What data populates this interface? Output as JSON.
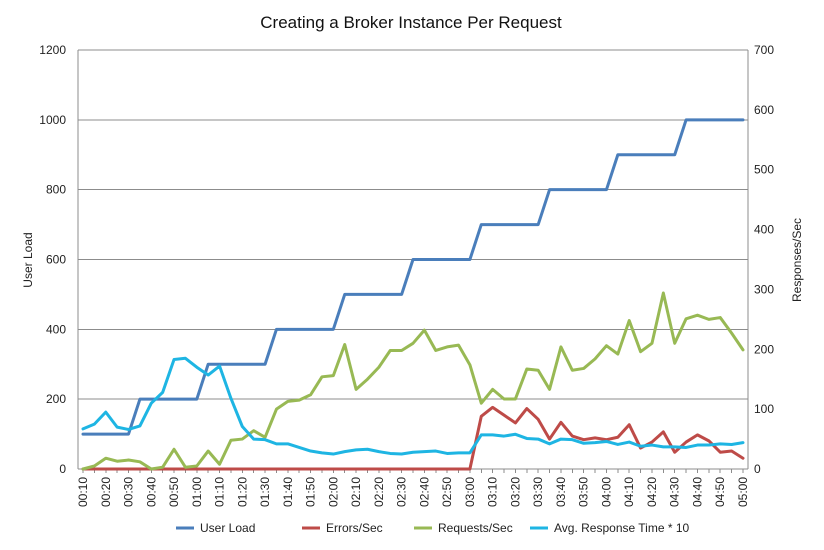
{
  "chart_data": {
    "type": "line",
    "title": "Creating a Broker Instance Per Request",
    "ylabel_left": "User Load",
    "ylabel_right": "Responses/Sec",
    "ylim_left": [
      0,
      1200
    ],
    "ylim_right": [
      0,
      700
    ],
    "yticks_left": [
      0,
      200,
      400,
      600,
      800,
      1000,
      1200
    ],
    "yticks_right": [
      0,
      100,
      200,
      300,
      400,
      500,
      600,
      700
    ],
    "grid": "horizontal",
    "legend_position": "bottom",
    "categories": [
      "00:10",
      "00:15",
      "00:20",
      "00:25",
      "00:30",
      "00:35",
      "00:40",
      "00:45",
      "00:50",
      "00:55",
      "01:00",
      "01:05",
      "01:10",
      "01:15",
      "01:20",
      "01:25",
      "01:30",
      "01:35",
      "01:40",
      "01:45",
      "01:50",
      "01:55",
      "02:00",
      "02:05",
      "02:10",
      "02:15",
      "02:20",
      "02:25",
      "02:30",
      "02:35",
      "02:40",
      "02:45",
      "02:50",
      "02:55",
      "03:00",
      "03:05",
      "03:10",
      "03:15",
      "03:20",
      "03:25",
      "03:30",
      "03:35",
      "03:40",
      "03:45",
      "03:50",
      "03:55",
      "04:00",
      "04:05",
      "04:10",
      "04:15",
      "04:20",
      "04:25",
      "04:30",
      "04:35",
      "04:40",
      "04:45",
      "04:50",
      "04:55",
      "05:00"
    ],
    "tick_labels": [
      "00:10",
      "00:20",
      "00:30",
      "00:40",
      "00:50",
      "01:00",
      "01:10",
      "01:20",
      "01:30",
      "01:40",
      "01:50",
      "02:00",
      "02:10",
      "02:20",
      "02:30",
      "02:40",
      "02:50",
      "03:00",
      "03:10",
      "03:20",
      "03:30",
      "03:40",
      "03:50",
      "04:00",
      "04:10",
      "04:20",
      "04:30",
      "04:40",
      "04:50",
      "05:00"
    ],
    "series": [
      {
        "name": "User Load",
        "axis": "left",
        "color": "#4a7ebb",
        "values": [
          100,
          100,
          100,
          100,
          100,
          200,
          200,
          200,
          200,
          200,
          200,
          300,
          300,
          300,
          300,
          300,
          300,
          400,
          400,
          400,
          400,
          400,
          400,
          500,
          500,
          500,
          500,
          500,
          500,
          600,
          600,
          600,
          600,
          600,
          600,
          700,
          700,
          700,
          700,
          700,
          700,
          800,
          800,
          800,
          800,
          800,
          800,
          900,
          900,
          900,
          900,
          900,
          900,
          1000,
          1000,
          1000,
          1000,
          1000,
          1000
        ]
      },
      {
        "name": "Errors/Sec",
        "axis": "right",
        "color": "#be4b48",
        "values": [
          0,
          0,
          0,
          0,
          0,
          0,
          0,
          0,
          0,
          0,
          0,
          0,
          0,
          0,
          0,
          0,
          0,
          0,
          0,
          0,
          0,
          0,
          0,
          0,
          0,
          0,
          0,
          0,
          0,
          0,
          0,
          0,
          0,
          0,
          0,
          88,
          103,
          90,
          77,
          101,
          83,
          50,
          78,
          55,
          49,
          52,
          49,
          53,
          74,
          35,
          45,
          62,
          28,
          45,
          57,
          47,
          28,
          30,
          18
        ]
      },
      {
        "name": "Requests/Sec",
        "axis": "right",
        "color": "#98b954",
        "values": [
          0,
          5,
          18,
          13,
          15,
          12,
          0,
          3,
          33,
          3,
          5,
          30,
          8,
          48,
          50,
          64,
          53,
          100,
          113,
          115,
          124,
          154,
          156,
          208,
          133,
          150,
          170,
          198,
          198,
          210,
          232,
          198,
          204,
          207,
          174,
          110,
          133,
          117,
          117,
          167,
          165,
          133,
          204,
          165,
          168,
          184,
          206,
          192,
          248,
          196,
          210,
          294,
          210,
          251,
          257,
          250,
          253,
          227,
          199
        ]
      },
      {
        "name": "Avg. Response Time * 10",
        "axis": "right",
        "color": "#1eb5e3",
        "values": [
          67,
          75,
          95,
          70,
          66,
          72,
          110,
          128,
          183,
          185,
          170,
          157,
          172,
          118,
          71,
          50,
          49,
          42,
          42,
          36,
          30,
          27,
          25,
          29,
          32,
          33,
          29,
          26,
          25,
          28,
          29,
          30,
          26,
          27,
          27,
          57,
          57,
          55,
          58,
          51,
          50,
          42,
          50,
          49,
          43,
          44,
          46,
          41,
          45,
          38,
          40,
          37,
          37,
          36,
          40,
          40,
          42,
          41,
          44
        ]
      }
    ]
  }
}
